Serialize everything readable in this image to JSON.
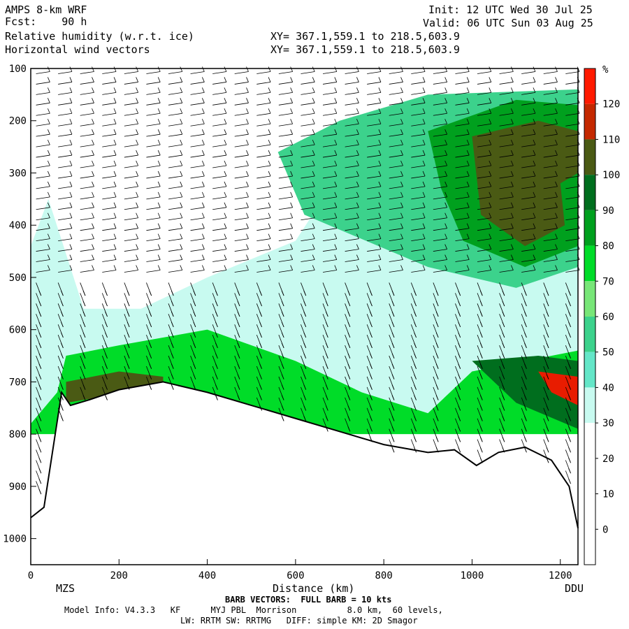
{
  "header": {
    "model": "AMPS 8-km WRF",
    "fcst": "Fcst:    90 h",
    "field1": "Relative humidity (w.r.t. ice)",
    "field2": "Horizontal wind vectors",
    "init": "Init: 12 UTC Wed 30 Jul 25",
    "valid": "Valid: 06 UTC Sun 03 Aug 25",
    "xy1": "XY= 367.1,559.1 to 218.5,603.9",
    "xy2": "XY= 367.1,559.1 to 218.5,603.9"
  },
  "footer": {
    "barb": "BARB VECTORS:  FULL BARB = 10 kts",
    "model_info": "Model Info: V4.3.3   KF      MYJ PBL  Morrison          8.0 km,  60 levels,",
    "physics": "LW: RRTM SW: RRTMG   DIFF: simple KM: 2D Smagor"
  },
  "chart_data": {
    "type": "heatmap",
    "title": "Relative humidity (w.r.t. ice)",
    "xlabel": "Distance (km)",
    "ylabel": "",
    "x_ticks": [
      "0",
      "200",
      "400",
      "600",
      "800",
      "1000",
      "1200"
    ],
    "y_ticks": [
      "100",
      "200",
      "300",
      "400",
      "500",
      "600",
      "700",
      "800",
      "900",
      "1000"
    ],
    "xlim": [
      0,
      1240
    ],
    "ylim": [
      1050,
      100
    ],
    "y_scale": "linear-pressure-reversed",
    "endpoints": [
      "MZS",
      "DDU"
    ],
    "colorbar": {
      "unit": "%",
      "levels": [
        "120",
        "110",
        "100",
        "90",
        "80",
        "70",
        "60",
        "50",
        "40",
        "30",
        "20",
        "10",
        "0"
      ],
      "colors": [
        "#ff1a00",
        "#c42800",
        "#4a5a14",
        "#006e1e",
        "#00a01e",
        "#00dc28",
        "#78e678",
        "#3cd28c",
        "#64e6c8",
        "#c8faf0",
        "#ffffff",
        "#ffffff",
        "#ffffff",
        "#ffffff"
      ]
    },
    "rh_regions": [
      {
        "level": "30-40",
        "pressure_top": 250,
        "pressure_bottom": 800,
        "distance_start": 0,
        "distance_end": 1240
      },
      {
        "level": "100-110",
        "pressure_top": 200,
        "pressure_bottom": 440,
        "distance_start": 1000,
        "distance_end": 1240
      },
      {
        "level": "110-120",
        "pressure_top": 680,
        "pressure_bottom": 740,
        "distance_start": 1150,
        "distance_end": 1240
      },
      {
        "level": "70-90",
        "pressure_top": 650,
        "pressure_bottom": 760,
        "distance_start": 60,
        "distance_end": 700
      }
    ],
    "terrain_pressure": [
      {
        "x": 0,
        "p": 960
      },
      {
        "x": 30,
        "p": 940
      },
      {
        "x": 70,
        "p": 720
      },
      {
        "x": 90,
        "p": 745
      },
      {
        "x": 130,
        "p": 735
      },
      {
        "x": 200,
        "p": 715
      },
      {
        "x": 300,
        "p": 700
      },
      {
        "x": 400,
        "p": 720
      },
      {
        "x": 500,
        "p": 745
      },
      {
        "x": 600,
        "p": 770
      },
      {
        "x": 700,
        "p": 795
      },
      {
        "x": 800,
        "p": 820
      },
      {
        "x": 900,
        "p": 835
      },
      {
        "x": 960,
        "p": 830
      },
      {
        "x": 1010,
        "p": 860
      },
      {
        "x": 1060,
        "p": 835
      },
      {
        "x": 1120,
        "p": 825
      },
      {
        "x": 1180,
        "p": 850
      },
      {
        "x": 1220,
        "p": 900
      },
      {
        "x": 1240,
        "p": 980
      }
    ],
    "barb_note": "BARB VECTORS:  FULL BARB = 10 kts"
  }
}
